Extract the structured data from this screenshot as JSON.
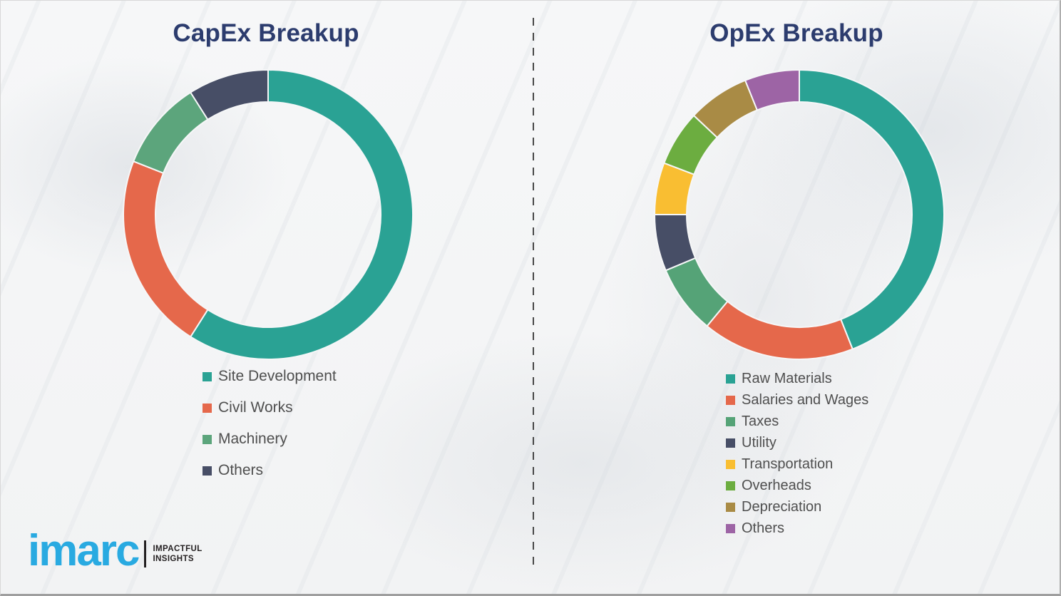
{
  "chart_data": [
    {
      "type": "pie",
      "variant": "donut",
      "title": "CapEx Breakup",
      "categories": [
        "Site Development",
        "Civil Works",
        "Machinery",
        "Others"
      ],
      "values": [
        59,
        22,
        10,
        9
      ],
      "unit": "percent-estimated-from-arc-angles",
      "colors": [
        "#2aa294",
        "#e5684b",
        "#5ca57c",
        "#474e66"
      ],
      "legend_position": "below-left",
      "data_labels": "none",
      "start_angle_deg": 0,
      "direction": "clockwise"
    },
    {
      "type": "pie",
      "variant": "donut",
      "title": "OpEx Breakup",
      "categories": [
        "Raw Materials",
        "Salaries and Wages",
        "Taxes",
        "Utility",
        "Transportation",
        "Overheads",
        "Depreciation",
        "Others"
      ],
      "values": [
        44,
        17,
        7.7,
        6.3,
        5.8,
        6.2,
        6.9,
        6.1
      ],
      "unit": "percent-estimated-from-arc-angles",
      "colors": [
        "#2aa294",
        "#e5684b",
        "#55a377",
        "#474e66",
        "#f9be32",
        "#6cad40",
        "#a98b45",
        "#9d64a5"
      ],
      "legend_position": "below-left",
      "data_labels": "none",
      "start_angle_deg": 0,
      "direction": "clockwise"
    }
  ],
  "logo": {
    "brand": "imarc",
    "tagline_line1": "IMPACTFUL",
    "tagline_line2": "INSIGHTS",
    "brand_color": "#29aae1"
  },
  "styles": {
    "title_color": "#2c3c6e",
    "legend_text_color": "#4f4f4f",
    "background_color": "#f4f5f6",
    "divider_style": "vertical-dashed"
  }
}
